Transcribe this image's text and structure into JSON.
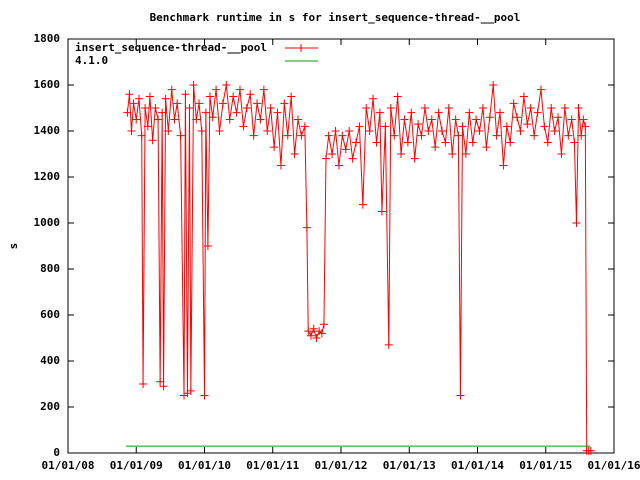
{
  "chart_data": {
    "type": "line",
    "title": "Benchmark runtime in s for insert_sequence-thread-__pool",
    "ylabel": "s",
    "xlim": [
      2008,
      2016
    ],
    "xticks": [
      {
        "value": 2008,
        "label": "01/01/08"
      },
      {
        "value": 2009,
        "label": "01/01/09"
      },
      {
        "value": 2010,
        "label": "01/01/10"
      },
      {
        "value": 2011,
        "label": "01/01/11"
      },
      {
        "value": 2012,
        "label": "01/01/12"
      },
      {
        "value": 2013,
        "label": "01/01/13"
      },
      {
        "value": 2014,
        "label": "01/01/14"
      },
      {
        "value": 2015,
        "label": "01/01/15"
      },
      {
        "value": 2016,
        "label": "01/01/16"
      }
    ],
    "ylim": [
      0,
      1800
    ],
    "yticks": [
      0,
      200,
      400,
      600,
      800,
      1000,
      1200,
      1400,
      1600,
      1800
    ],
    "legend": "top-left",
    "series": [
      {
        "name": "insert_sequence-thread-__pool",
        "color": "#ff0000",
        "markers": true,
        "x": [
          2008.87,
          2008.9,
          2008.93,
          2008.96,
          2009.0,
          2009.04,
          2009.08,
          2009.1,
          2009.13,
          2009.17,
          2009.2,
          2009.24,
          2009.28,
          2009.32,
          2009.35,
          2009.38,
          2009.4,
          2009.43,
          2009.47,
          2009.52,
          2009.56,
          2009.6,
          2009.65,
          2009.7,
          2009.72,
          2009.75,
          2009.78,
          2009.8,
          2009.84,
          2009.88,
          2009.92,
          2009.96,
          2010.0,
          2010.02,
          2010.05,
          2010.08,
          2010.12,
          2010.17,
          2010.22,
          2010.27,
          2010.32,
          2010.37,
          2010.42,
          2010.47,
          2010.52,
          2010.57,
          2010.62,
          2010.67,
          2010.72,
          2010.77,
          2010.82,
          2010.87,
          2010.92,
          2010.97,
          2011.02,
          2011.07,
          2011.12,
          2011.17,
          2011.22,
          2011.27,
          2011.32,
          2011.37,
          2011.42,
          2011.47,
          2011.5,
          2011.52,
          2011.56,
          2011.6,
          2011.64,
          2011.68,
          2011.72,
          2011.75,
          2011.78,
          2011.82,
          2011.87,
          2011.92,
          2011.97,
          2012.02,
          2012.07,
          2012.12,
          2012.17,
          2012.22,
          2012.27,
          2012.32,
          2012.37,
          2012.42,
          2012.47,
          2012.52,
          2012.57,
          2012.6,
          2012.65,
          2012.7,
          2012.73,
          2012.78,
          2012.83,
          2012.88,
          2012.93,
          2012.98,
          2013.03,
          2013.08,
          2013.13,
          2013.18,
          2013.23,
          2013.28,
          2013.33,
          2013.38,
          2013.43,
          2013.48,
          2013.53,
          2013.58,
          2013.63,
          2013.68,
          2013.72,
          2013.75,
          2013.78,
          2013.83,
          2013.88,
          2013.93,
          2013.98,
          2014.03,
          2014.08,
          2014.13,
          2014.18,
          2014.23,
          2014.28,
          2014.33,
          2014.38,
          2014.43,
          2014.48,
          2014.53,
          2014.58,
          2014.63,
          2014.68,
          2014.73,
          2014.78,
          2014.83,
          2014.88,
          2014.93,
          2014.98,
          2015.03,
          2015.08,
          2015.13,
          2015.18,
          2015.23,
          2015.28,
          2015.33,
          2015.38,
          2015.42,
          2015.45,
          2015.48,
          2015.52,
          2015.55,
          2015.58,
          2015.6,
          2015.63,
          2015.66
        ],
        "values": [
          1480,
          1560,
          1400,
          1520,
          1450,
          1540,
          1380,
          300,
          1500,
          1420,
          1550,
          1360,
          1500,
          1450,
          310,
          1480,
          290,
          1540,
          1400,
          1580,
          1450,
          1520,
          1380,
          250,
          1560,
          260,
          1500,
          270,
          1600,
          1450,
          1520,
          1400,
          250,
          1480,
          900,
          1550,
          1460,
          1580,
          1400,
          1520,
          1600,
          1450,
          1550,
          1480,
          1580,
          1420,
          1500,
          1560,
          1380,
          1520,
          1450,
          1580,
          1400,
          1500,
          1330,
          1480,
          1250,
          1520,
          1380,
          1550,
          1300,
          1450,
          1380,
          1420,
          980,
          530,
          510,
          540,
          500,
          530,
          520,
          560,
          1280,
          1380,
          1300,
          1400,
          1250,
          1380,
          1320,
          1400,
          1280,
          1350,
          1420,
          1080,
          1500,
          1400,
          1540,
          1350,
          1480,
          1050,
          1420,
          470,
          1500,
          1380,
          1550,
          1300,
          1450,
          1350,
          1480,
          1280,
          1430,
          1380,
          1500,
          1400,
          1450,
          1330,
          1480,
          1400,
          1350,
          1500,
          1300,
          1450,
          1380,
          250,
          1420,
          1300,
          1480,
          1350,
          1450,
          1400,
          1500,
          1330,
          1460,
          1600,
          1380,
          1480,
          1250,
          1420,
          1350,
          1520,
          1460,
          1400,
          1550,
          1430,
          1500,
          1380,
          1480,
          1580,
          1420,
          1350,
          1500,
          1400,
          1460,
          1300,
          1500,
          1380,
          1450,
          1350,
          1000,
          1500,
          1380,
          1450,
          1420,
          10,
          10,
          10
        ]
      },
      {
        "name": "4.1.0",
        "color": "#00a000",
        "markers": false,
        "x": [
          2008.85,
          2015.65
        ],
        "values": [
          30,
          30
        ]
      }
    ]
  }
}
